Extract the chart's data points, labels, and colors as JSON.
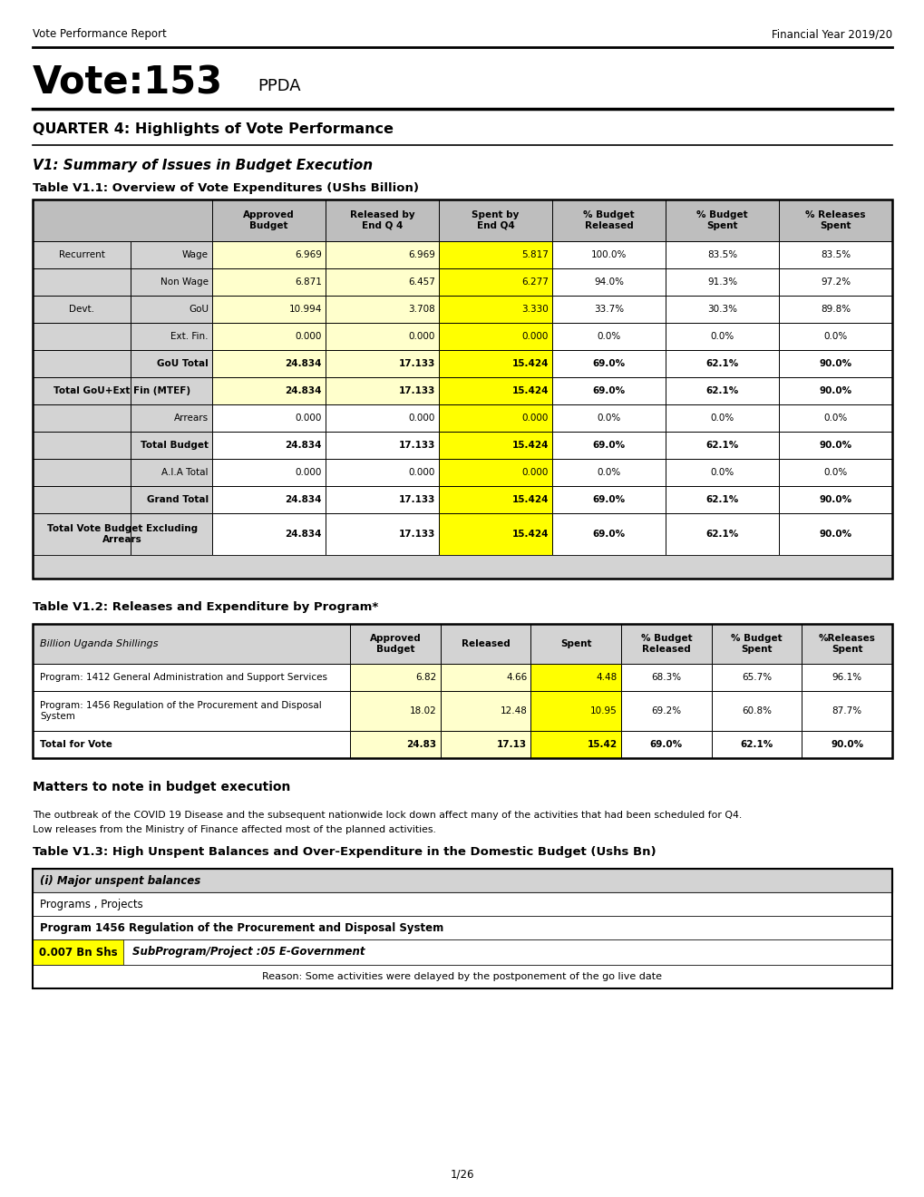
{
  "header_left": "Vote Performance Report",
  "header_right": "Financial Year 2019/20",
  "vote_title": "Vote:153",
  "vote_subtitle": "PPDA",
  "quarter_title": "QUARTER 4: Highlights of Vote Performance",
  "section1_title": "V1: Summary of Issues in Budget Execution",
  "table1_title": "Table V1.1: Overview of Vote Expenditures (UShs Billion)",
  "table1_col_headers": [
    "Approved\nBudget",
    "Released by\nEnd Q 4",
    "Spent by\nEnd Q4",
    "% Budget\nReleased",
    "% Budget\nSpent",
    "% Releases\nSpent"
  ],
  "table2_title": "Table V1.2: Releases and Expenditure by Program*",
  "table2_col_headers": [
    "Approved\nBudget",
    "Released",
    "Spent",
    "% Budget\nReleased",
    "% Budget\nSpent",
    "%Releases\nSpent"
  ],
  "table2_header_italic": "Billion Uganda Shillings",
  "matters_title": "Matters to note in budget execution",
  "matters_text1": "The outbreak of the COVID 19 Disease and the subsequent nationwide lock down affect many of the activities that had been scheduled for Q4.",
  "matters_text2": "Low releases from the Ministry of Finance affected most of the planned activities.",
  "table3_title": "Table V1.3: High Unspent Balances and Over-Expenditure in the Domestic Budget (Ushs Bn)",
  "table3_italic_header": "(i) Major unspent balances",
  "table3_row1": "Programs , Projects",
  "table3_row2": "Program 1456 Regulation of the Procurement and Disposal System",
  "table3_amount": "0.007 Bn Shs",
  "table3_subprogram": "SubProgram/Project :05 E-Government",
  "table3_reason": "Reason: Some activities were delayed by the postponement of the go live date",
  "page_number": "1/26",
  "colors": {
    "light_yellow": "#ffffcc",
    "yellow": "#ffff00",
    "gray_header": "#bebebe",
    "light_gray": "#d3d3d3",
    "white": "#ffffff",
    "black": "#000000"
  }
}
